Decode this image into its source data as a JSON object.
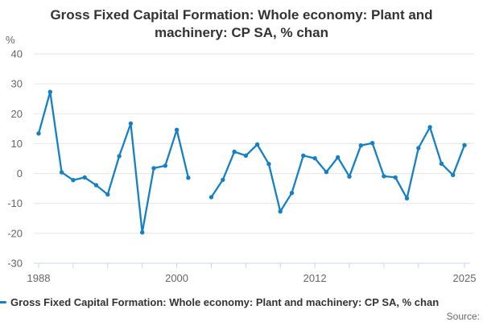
{
  "source_label": "Source:",
  "legend": {
    "series_label": "Gross Fixed Capital Formation: Whole economy: Plant and machinery: CP SA, % chan"
  },
  "colors": {
    "series": "#1581c4",
    "grid": "#e6e6e6",
    "axis": "#ccd6eb",
    "tick_text": "#666666",
    "title_text": "#333333"
  },
  "chart_data": {
    "type": "line",
    "title": "Gross Fixed Capital Formation: Whole economy: Plant and machinery: CP SA, % chan",
    "ylabel": "%",
    "xlabel": "",
    "grid": "horizontal",
    "legend_position": "bottom-left",
    "ylim": [
      -30,
      40
    ],
    "yticks": [
      40,
      30,
      20,
      10,
      0,
      -10,
      -20,
      -30
    ],
    "xlim": [
      1988,
      2025
    ],
    "xticks": [
      1988,
      1991,
      1994,
      1997,
      2000,
      2003,
      2006,
      2009,
      2012,
      2015,
      2018,
      2021,
      2025
    ],
    "xtick_labels": [
      1988,
      2000,
      2012,
      2025
    ],
    "x": [
      1988,
      1989,
      1990,
      1991,
      1992,
      1993,
      1994,
      1995,
      1996,
      1997,
      1998,
      1999,
      2000,
      2001,
      2002,
      2003,
      2004,
      2005,
      2006,
      2007,
      2008,
      2009,
      2010,
      2011,
      2012,
      2013,
      2014,
      2015,
      2016,
      2017,
      2018,
      2019,
      2020,
      2021,
      2022,
      2023,
      2024,
      2025
    ],
    "series": [
      {
        "name": "Gross Fixed Capital Formation: Whole economy: Plant and machinery: CP SA, % chan",
        "values": [
          13.4,
          27.3,
          0.4,
          -2.2,
          -1.3,
          -3.9,
          -7.0,
          5.8,
          16.7,
          -19.7,
          1.8,
          2.6,
          14.6,
          -1.4,
          null,
          -7.9,
          -2.1,
          7.3,
          6.0,
          9.7,
          3.2,
          -12.7,
          -6.5,
          6.0,
          5.1,
          0.5,
          5.4,
          -1.0,
          9.4,
          10.2,
          -0.9,
          -1.3,
          -8.3,
          8.5,
          15.5,
          3.3,
          -0.5,
          9.5
        ]
      }
    ]
  }
}
